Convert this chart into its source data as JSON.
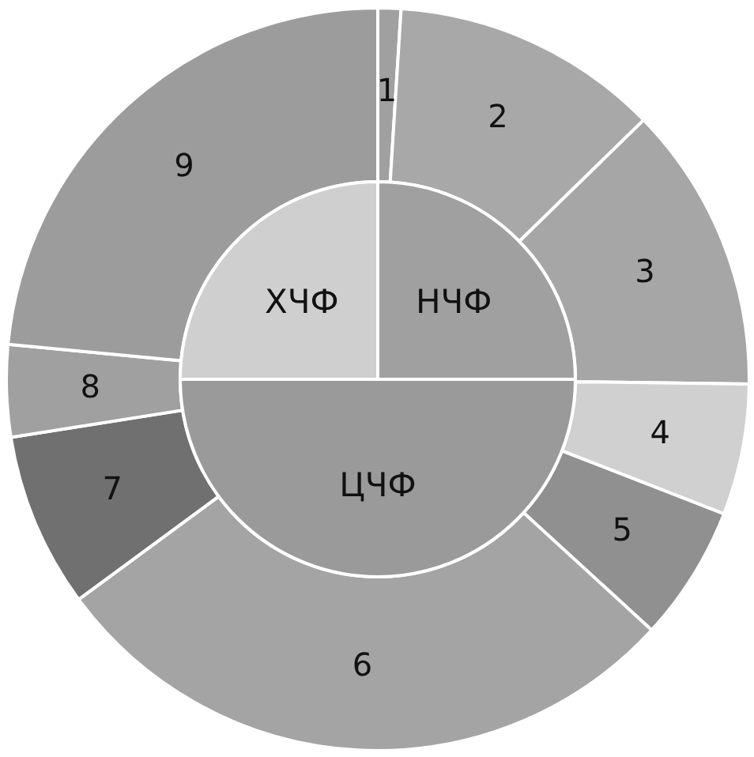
{
  "chart_data": [
    {
      "type": "pie",
      "categories": [
        "НЧФ",
        "ЦЧФ",
        "ХЧФ"
      ],
      "values": [
        25,
        50,
        25
      ],
      "colors": [
        "#a0a0a0",
        "#9a9a9a",
        "#cfcfcf"
      ]
    },
    {
      "type": "donut",
      "categories": [
        "1",
        "2",
        "3",
        "4",
        "5",
        "6",
        "7",
        "8",
        "9"
      ],
      "values": [
        1.0,
        11.7,
        12.5,
        5.7,
        5.9,
        28.1,
        7.6,
        4.0,
        23.5
      ],
      "colors": [
        "#a0a0a0",
        "#a8a8a8",
        "#a6a6a6",
        "#d0d0d0",
        "#909090",
        "#a4a4a4",
        "#707070",
        "#a0a0a0",
        "#9c9c9c"
      ]
    }
  ]
}
